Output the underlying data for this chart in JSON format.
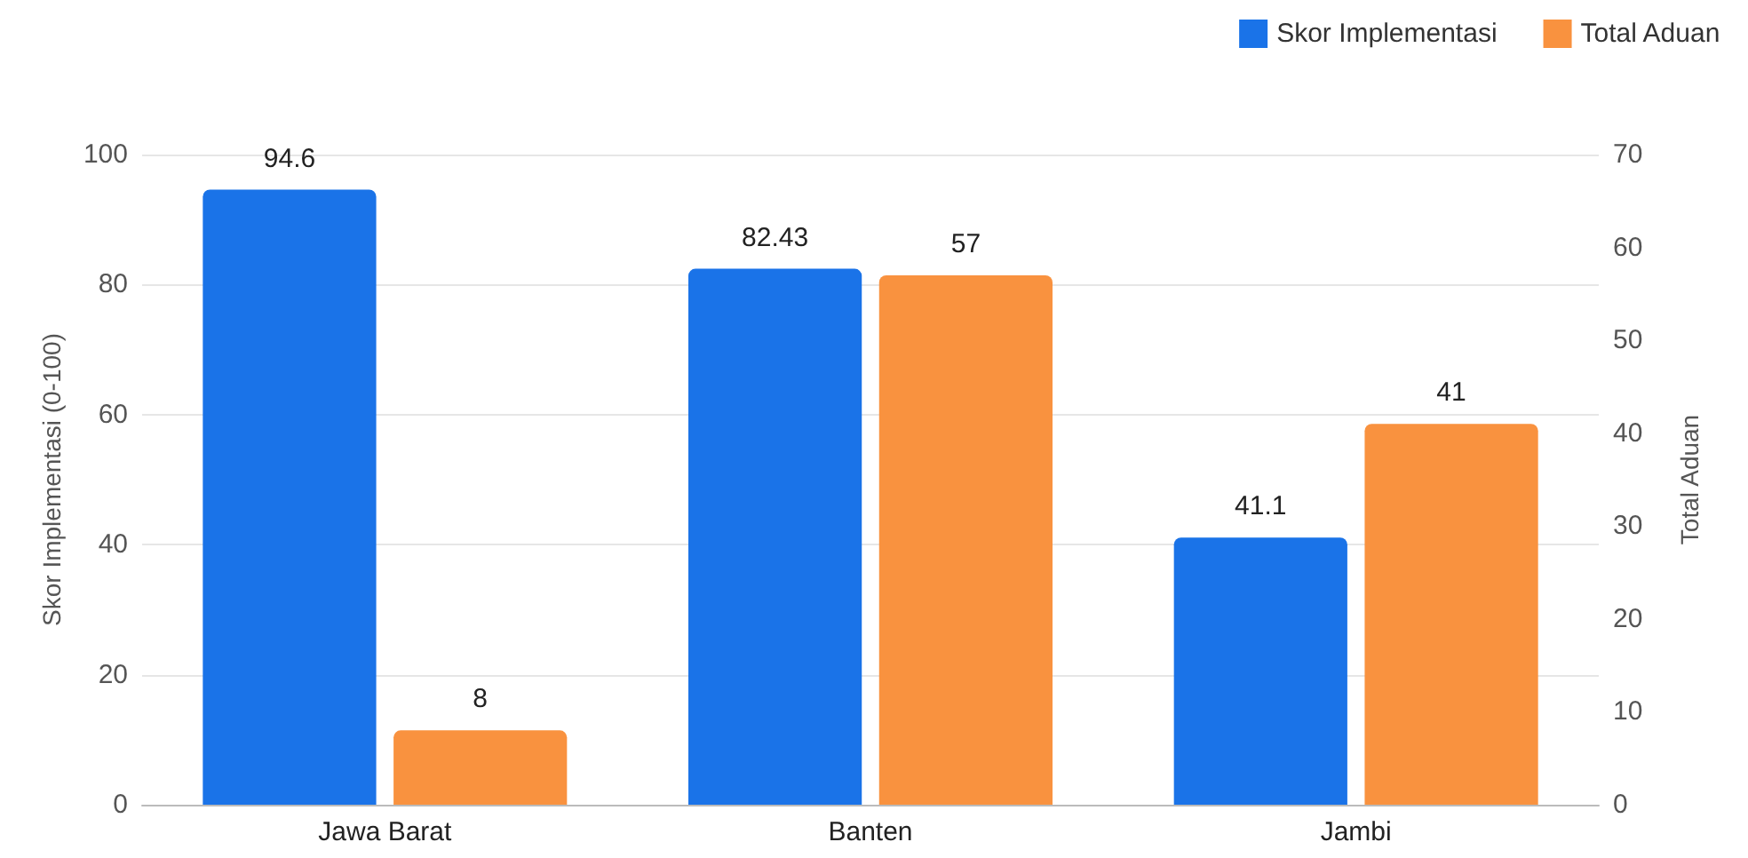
{
  "chart_data": {
    "type": "bar",
    "categories": [
      "Jawa Barat",
      "Banten",
      "Jambi"
    ],
    "series": [
      {
        "name": "Skor Implementasi",
        "color": "#1a73e8",
        "values": [
          94.6,
          82.43,
          41.1
        ]
      },
      {
        "name": "Total Aduan",
        "color": "#f9923f",
        "values": [
          8,
          57,
          41
        ],
        "axis": "y2"
      }
    ],
    "ylabel": "Skor Implementasi (0-100)",
    "y2label": "Total Aduan",
    "ylim": [
      0,
      100
    ],
    "yticks": [
      0,
      20,
      40,
      60,
      80,
      100
    ],
    "y2lim": [
      0,
      70
    ],
    "y2ticks": [
      0,
      10,
      20,
      30,
      40,
      50,
      60,
      70
    ],
    "data_labels": true,
    "grid": "y",
    "legend": "top right"
  }
}
